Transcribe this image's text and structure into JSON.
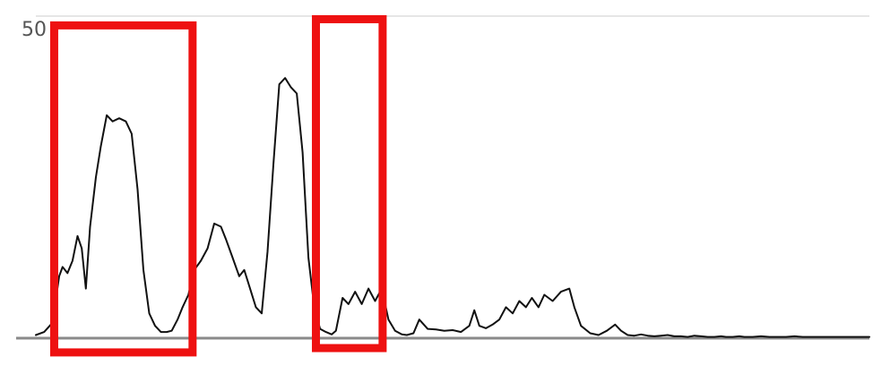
{
  "chart_data": {
    "type": "line",
    "title": "",
    "xlabel": "",
    "ylabel": "",
    "xlim": [
      0,
      100
    ],
    "ylim": [
      0,
      52
    ],
    "y_ticks": [
      {
        "value": 50,
        "label": "50"
      }
    ],
    "grid": true,
    "legend": "none",
    "series": [
      {
        "color": "#111111",
        "x": [
          0,
          1,
          2,
          2.8,
          3.2,
          3.8,
          4.4,
          5,
          5.5,
          6,
          6.5,
          7.2,
          7.8,
          8.5,
          9.2,
          10,
          10.8,
          11.5,
          12.2,
          12.9,
          13.6,
          14.3,
          15,
          15.7,
          16.3,
          17,
          17.6,
          18.3,
          19,
          19.8,
          20.6,
          21.4,
          22.2,
          22.8,
          23.6,
          24.4,
          25,
          25.7,
          26.4,
          27.1,
          27.8,
          28.5,
          29.2,
          29.9,
          30.6,
          31.3,
          32,
          32.7,
          33.4,
          34.1,
          34.8,
          35.5,
          36,
          36.8,
          37.5,
          38.3,
          39.1,
          39.9,
          40.7,
          41.5,
          42.3,
          43.1,
          43.9,
          44.5,
          45.3,
          46,
          47,
          48,
          49,
          50,
          51,
          52,
          52.6,
          53.2,
          54,
          54.8,
          55.6,
          56.4,
          57.2,
          58,
          58.8,
          59.5,
          60.3,
          61,
          62,
          63,
          64,
          64.6,
          65.4,
          66.5,
          67.5,
          68.5,
          69.5,
          70.2,
          71,
          71.8,
          72.6,
          73.4,
          74.2,
          75,
          75.8,
          76.6,
          77.4,
          78.2,
          79,
          79.8,
          80.6,
          81.4,
          82.2,
          82.8,
          83.6,
          84.4,
          85,
          86,
          87,
          88,
          89,
          90,
          91,
          92,
          93,
          94,
          95,
          96,
          97,
          98,
          99,
          100
        ],
        "y": [
          0.5,
          1,
          2.5,
          10,
          11.5,
          10.5,
          12.5,
          16.5,
          14.5,
          8,
          18,
          26,
          31,
          36,
          35,
          35.5,
          35,
          33,
          24,
          11,
          4,
          2,
          1,
          1,
          1.2,
          3,
          5,
          7,
          11,
          12.5,
          14.5,
          18.5,
          18,
          16,
          13,
          10,
          11,
          8,
          5,
          4,
          14,
          28,
          41,
          42,
          40.5,
          39.5,
          30,
          13,
          5,
          1.5,
          1,
          0.6,
          1.2,
          6.5,
          5.5,
          7.5,
          5.5,
          8,
          6,
          8,
          3,
          1.2,
          0.6,
          0.5,
          0.8,
          3,
          1.5,
          1.4,
          1.2,
          1.3,
          1,
          2,
          4.5,
          2,
          1.6,
          2.2,
          3,
          5,
          4,
          6,
          5,
          6.5,
          5,
          7,
          6,
          7.5,
          8,
          5,
          2,
          0.8,
          0.5,
          1.2,
          2.2,
          1.2,
          0.5,
          0.4,
          0.6,
          0.4,
          0.3,
          0.4,
          0.5,
          0.3,
          0.3,
          0.2,
          0.4,
          0.3,
          0.2,
          0.2,
          0.3,
          0.2,
          0.2,
          0.3,
          0.2,
          0.2,
          0.3,
          0.2,
          0.2,
          0.2,
          0.3,
          0.2,
          0.2,
          0.2,
          0.2,
          0.2,
          0.2,
          0.2,
          0.2,
          0.2
        ]
      }
    ],
    "highlight_boxes": [
      {
        "x_start": 2.2,
        "x_end": 18.8,
        "y_top": 50.5,
        "y_bottom": -2.3,
        "color": "#ee1111"
      },
      {
        "x_start": 33.6,
        "x_end": 41.6,
        "y_top": 51.5,
        "y_bottom": -1.6,
        "color": "#ee1111"
      }
    ]
  }
}
